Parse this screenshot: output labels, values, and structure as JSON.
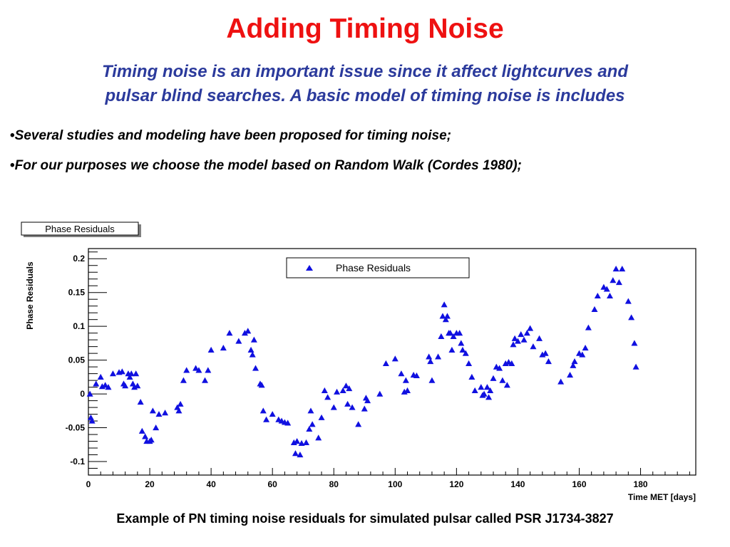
{
  "slide": {
    "title": "Adding Timing Noise",
    "subtitle_line1": "Timing noise is an important issue since it affect lightcurves and",
    "subtitle_line2": "pulsar blind searches. A basic model of timing noise is includes",
    "bullets": [
      "Several studies and modeling have been proposed for timing noise;",
      "For our purposes we choose the model based on Random Walk  (Cordes 1980);"
    ],
    "caption": "Example of PN timing noise residuals for simulated pulsar called PSR J1734-3827"
  },
  "chart_data": {
    "type": "scatter",
    "title": "Phase Residuals",
    "xlabel": "Time MET [days]",
    "ylabel": "Phase Residuals",
    "xlim": [
      0,
      198
    ],
    "ylim": [
      -0.12,
      0.215
    ],
    "xticks": [
      0,
      20,
      40,
      60,
      80,
      100,
      120,
      140,
      160,
      180
    ],
    "yticks": [
      -0.1,
      -0.05,
      0,
      0.05,
      0.1,
      0.15,
      0.2
    ],
    "ytick_labels": [
      "-0.1",
      "-0.05",
      "0",
      "0.05",
      "0.1",
      "0.15",
      "0.2"
    ],
    "legend": "top-center",
    "marker": "triangle",
    "color": "#1010e0",
    "series": [
      {
        "name": "Phase Residuals",
        "points": [
          [
            0.5,
            0.0
          ],
          [
            0.8,
            -0.035
          ],
          [
            1.2,
            -0.04
          ],
          [
            2.5,
            0.015
          ],
          [
            4,
            0.025
          ],
          [
            4.5,
            0.011
          ],
          [
            5.5,
            0.013
          ],
          [
            6.5,
            0.01
          ],
          [
            8,
            0.03
          ],
          [
            10,
            0.032
          ],
          [
            11,
            0.033
          ],
          [
            11.5,
            0.015
          ],
          [
            12,
            0.012
          ],
          [
            13,
            0.03
          ],
          [
            13.5,
            0.025
          ],
          [
            14,
            0.03
          ],
          [
            14.5,
            0.015
          ],
          [
            15,
            0.01
          ],
          [
            15.5,
            0.03
          ],
          [
            16,
            0.012
          ],
          [
            17,
            -0.012
          ],
          [
            17.5,
            -0.055
          ],
          [
            18.5,
            -0.063
          ],
          [
            19,
            -0.07
          ],
          [
            20,
            -0.07
          ],
          [
            20.5,
            -0.068
          ],
          [
            21,
            -0.025
          ],
          [
            22,
            -0.05
          ],
          [
            23,
            -0.03
          ],
          [
            25,
            -0.028
          ],
          [
            29,
            -0.02
          ],
          [
            29.5,
            -0.025
          ],
          [
            30,
            -0.015
          ],
          [
            31,
            0.02
          ],
          [
            32,
            0.035
          ],
          [
            35,
            0.038
          ],
          [
            36,
            0.035
          ],
          [
            38,
            0.02
          ],
          [
            39,
            0.035
          ],
          [
            40,
            0.065
          ],
          [
            44,
            0.068
          ],
          [
            46,
            0.09
          ],
          [
            49,
            0.078
          ],
          [
            51,
            0.09
          ],
          [
            52,
            0.093
          ],
          [
            53,
            0.065
          ],
          [
            53.5,
            0.058
          ],
          [
            54,
            0.08
          ],
          [
            54.5,
            0.038
          ],
          [
            56,
            0.015
          ],
          [
            56.5,
            0.013
          ],
          [
            57,
            -0.025
          ],
          [
            58,
            -0.038
          ],
          [
            60,
            -0.03
          ],
          [
            62,
            -0.038
          ],
          [
            63,
            -0.04
          ],
          [
            64,
            -0.042
          ],
          [
            65,
            -0.043
          ],
          [
            67,
            -0.072
          ],
          [
            67.5,
            -0.088
          ],
          [
            68,
            -0.07
          ],
          [
            69,
            -0.09
          ],
          [
            69.5,
            -0.073
          ],
          [
            71,
            -0.072
          ],
          [
            72,
            -0.052
          ],
          [
            72.5,
            -0.025
          ],
          [
            73,
            -0.045
          ],
          [
            75,
            -0.065
          ],
          [
            76,
            -0.035
          ],
          [
            77,
            0.005
          ],
          [
            78,
            -0.005
          ],
          [
            80,
            -0.02
          ],
          [
            81,
            0.003
          ],
          [
            83,
            0.005
          ],
          [
            84,
            0.012
          ],
          [
            84.5,
            -0.015
          ],
          [
            85,
            0.008
          ],
          [
            86,
            -0.02
          ],
          [
            88,
            -0.045
          ],
          [
            90,
            -0.022
          ],
          [
            90.5,
            -0.006
          ],
          [
            91,
            -0.01
          ],
          [
            95,
            0.0
          ],
          [
            97,
            0.045
          ],
          [
            100,
            0.052
          ],
          [
            102,
            0.03
          ],
          [
            103,
            0.003
          ],
          [
            103.5,
            0.02
          ],
          [
            104,
            0.005
          ],
          [
            106,
            0.028
          ],
          [
            107,
            0.027
          ],
          [
            111,
            0.055
          ],
          [
            111.5,
            0.048
          ],
          [
            112,
            0.02
          ],
          [
            114,
            0.055
          ],
          [
            115,
            0.085
          ],
          [
            115.5,
            0.115
          ],
          [
            116,
            0.132
          ],
          [
            116.5,
            0.11
          ],
          [
            117,
            0.115
          ],
          [
            117.5,
            0.09
          ],
          [
            118,
            0.09
          ],
          [
            118.5,
            0.065
          ],
          [
            119,
            0.085
          ],
          [
            120,
            0.09
          ],
          [
            121,
            0.09
          ],
          [
            121.5,
            0.075
          ],
          [
            122,
            0.065
          ],
          [
            123,
            0.06
          ],
          [
            124,
            0.045
          ],
          [
            125,
            0.025
          ],
          [
            126,
            0.005
          ],
          [
            128,
            0.01
          ],
          [
            128.5,
            -0.002
          ],
          [
            129,
            0.0
          ],
          [
            130,
            0.01
          ],
          [
            130.5,
            -0.005
          ],
          [
            131,
            0.005
          ],
          [
            132,
            0.023
          ],
          [
            133,
            0.04
          ],
          [
            134,
            0.038
          ],
          [
            135,
            0.02
          ],
          [
            136,
            0.045
          ],
          [
            136.5,
            0.013
          ],
          [
            137,
            0.047
          ],
          [
            138,
            0.045
          ],
          [
            138.5,
            0.073
          ],
          [
            139,
            0.082
          ],
          [
            140,
            0.078
          ],
          [
            141,
            0.088
          ],
          [
            142,
            0.08
          ],
          [
            143,
            0.09
          ],
          [
            144,
            0.097
          ],
          [
            145,
            0.07
          ],
          [
            147,
            0.082
          ],
          [
            148,
            0.058
          ],
          [
            149,
            0.06
          ],
          [
            150,
            0.048
          ],
          [
            154,
            0.018
          ],
          [
            157,
            0.028
          ],
          [
            158,
            0.042
          ],
          [
            158.5,
            0.048
          ],
          [
            160,
            0.06
          ],
          [
            161,
            0.058
          ],
          [
            162,
            0.068
          ],
          [
            163,
            0.098
          ],
          [
            165,
            0.125
          ],
          [
            166,
            0.145
          ],
          [
            168,
            0.158
          ],
          [
            169,
            0.155
          ],
          [
            170,
            0.145
          ],
          [
            171,
            0.168
          ],
          [
            172,
            0.185
          ],
          [
            173,
            0.165
          ],
          [
            174,
            0.185
          ],
          [
            176,
            0.137
          ],
          [
            177,
            0.113
          ],
          [
            178,
            0.075
          ],
          [
            178.5,
            0.04
          ]
        ]
      }
    ]
  }
}
